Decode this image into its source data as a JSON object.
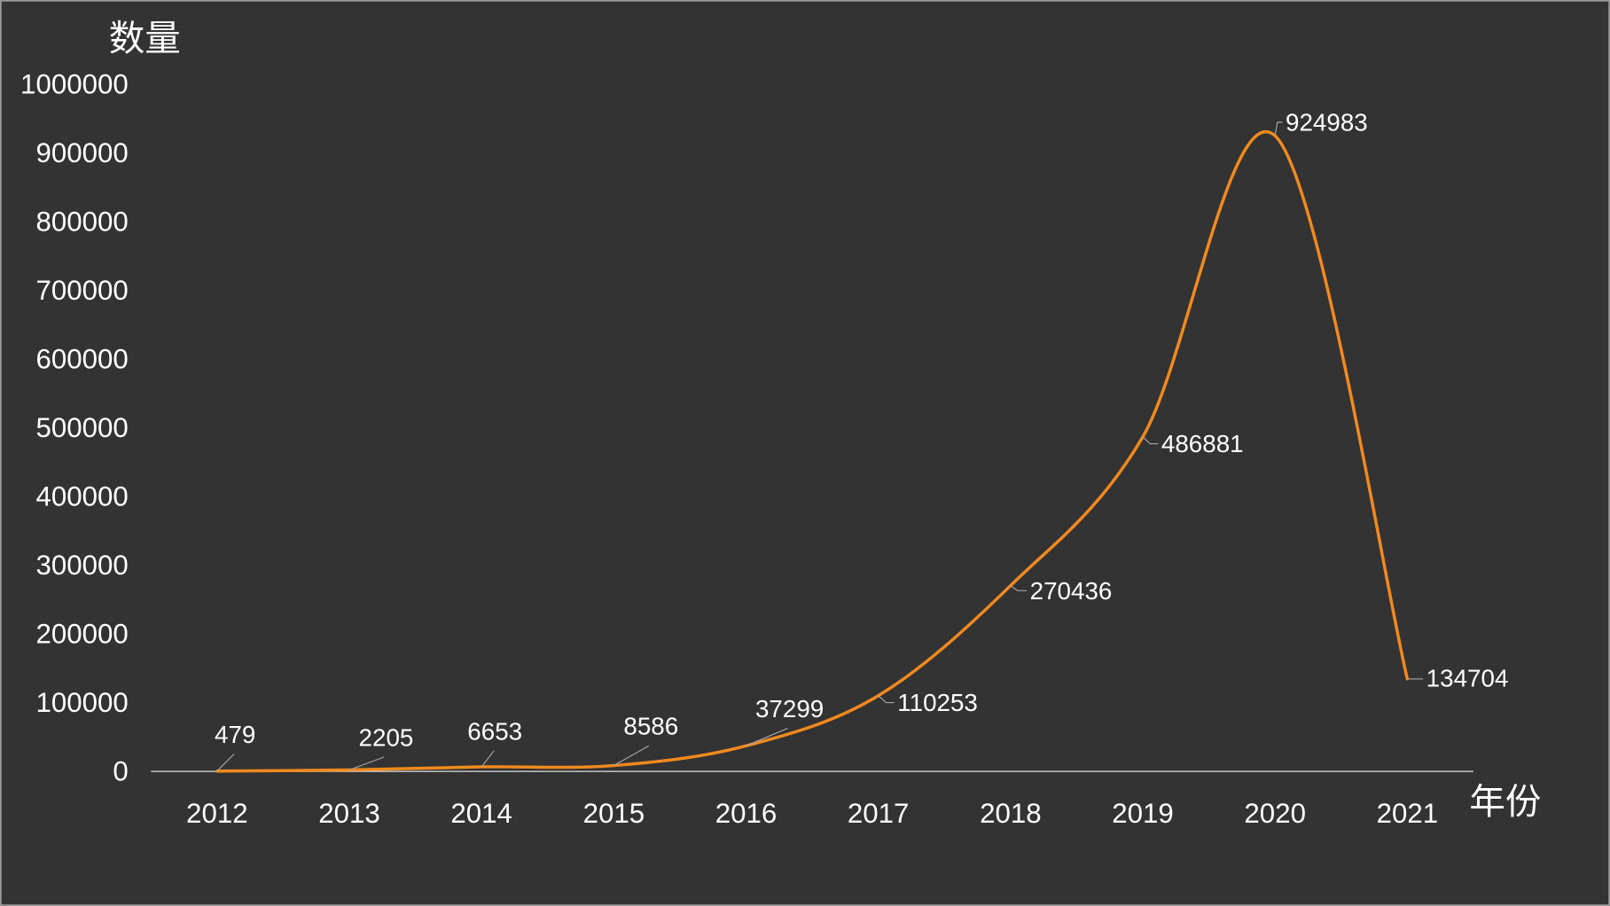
{
  "chart_data": {
    "type": "line",
    "smooth": true,
    "categories": [
      "2012",
      "2013",
      "2014",
      "2015",
      "2016",
      "2017",
      "2018",
      "2019",
      "2020",
      "2021"
    ],
    "series": [
      {
        "values": [
          479,
          2205,
          6653,
          8586,
          37299,
          110253,
          270436,
          486881,
          924983,
          134704
        ]
      }
    ],
    "data_labels": true,
    "xlabel": "年份",
    "ylabel": "数量",
    "ylim": [
      0,
      1000000
    ],
    "yticks": [
      0,
      100000,
      200000,
      300000,
      400000,
      500000,
      600000,
      700000,
      800000,
      900000,
      1000000
    ],
    "grid": false,
    "legend": "none",
    "colors": {
      "line": "#F28A1E",
      "background": "#333333",
      "text": "#FFFFFF",
      "axis": "#D0D0D0"
    }
  }
}
